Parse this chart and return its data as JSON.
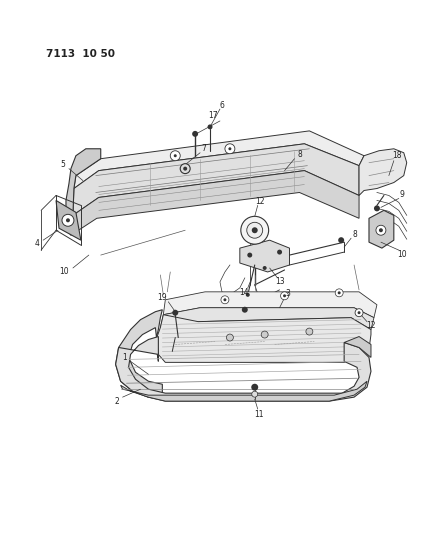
{
  "title_code": "7113  10 50",
  "background_color": "#ffffff",
  "line_color": "#333333",
  "text_color": "#222222",
  "fig_width": 4.28,
  "fig_height": 5.33,
  "dpi": 100
}
